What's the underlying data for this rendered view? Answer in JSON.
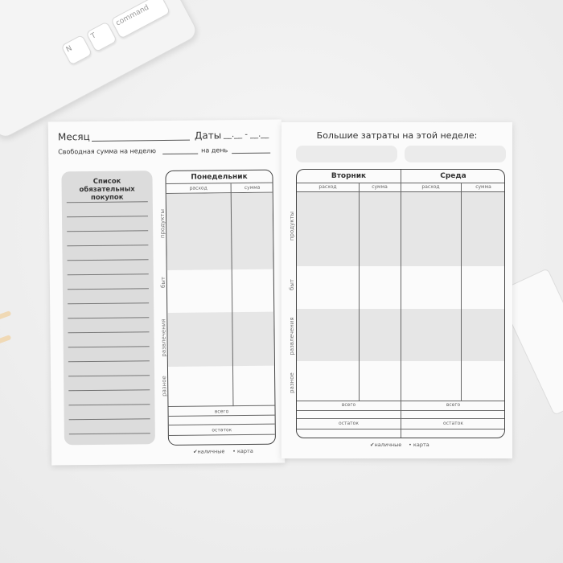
{
  "keyboard": {
    "keys": [
      "N",
      "T",
      "command"
    ]
  },
  "left_page": {
    "month_label": "Месяц",
    "dates_label": "Даты",
    "dates_placeholder": "__.__ - __.__",
    "free_sum_label": "Свободная сумма на неделю",
    "per_day_label": "на день",
    "shopping_list_title": "Список обязательных покупок",
    "shopping_list_lines": 17,
    "day": "Понедельник",
    "legend": {
      "cash": "наличные",
      "card": "карта"
    }
  },
  "right_page": {
    "title": "Большие затраты на этой неделе:",
    "days": [
      "Вторник",
      "Среда"
    ],
    "legend": {
      "cash": "наличные",
      "card": "карта"
    }
  },
  "table": {
    "columns": [
      "расход",
      "сумма"
    ],
    "categories": [
      "продукты",
      "быт",
      "развлечения",
      "разное"
    ],
    "total_label": "всего",
    "remainder_label": "остаток"
  },
  "colors": {
    "band": "#e6e6e6",
    "list_box": "#dcdcdc"
  }
}
